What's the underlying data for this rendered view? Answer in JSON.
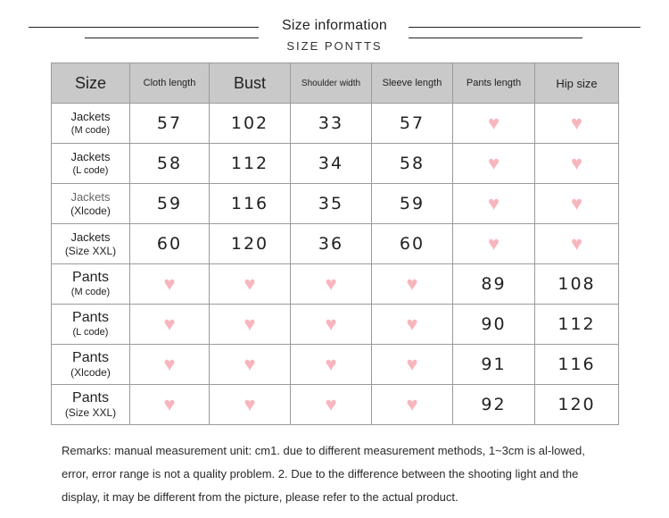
{
  "header": {
    "title": "Size information",
    "subtitle": "SIZE PONTTS"
  },
  "table": {
    "headers": [
      "Size",
      "Cloth length",
      "Bust",
      "Shoulder width",
      "Sleeve length",
      "Pants length",
      "Hip size"
    ],
    "rows": [
      {
        "type": "Jackets",
        "code": "(M code)",
        "values": [
          "57",
          "102",
          "33",
          "57",
          "♥",
          "♥"
        ]
      },
      {
        "type": "Jackets",
        "code": "(L code)",
        "values": [
          "58",
          "112",
          "34",
          "58",
          "♥",
          "♥"
        ]
      },
      {
        "type": "Jackets",
        "code": "(Xlcode)",
        "values": [
          "59",
          "116",
          "35",
          "59",
          "♥",
          "♥"
        ]
      },
      {
        "type": "Jackets",
        "code": "(Size XXL)",
        "values": [
          "60",
          "120",
          "36",
          "60",
          "♥",
          "♥"
        ]
      },
      {
        "type": "Pants",
        "code": "(M code)",
        "values": [
          "♥",
          "♥",
          "♥",
          "♥",
          "89",
          "108"
        ]
      },
      {
        "type": "Pants",
        "code": "(L code)",
        "values": [
          "♥",
          "♥",
          "♥",
          "♥",
          "90",
          "112"
        ]
      },
      {
        "type": "Pants",
        "code": "(Xlcode)",
        "values": [
          "♥",
          "♥",
          "♥",
          "♥",
          "91",
          "116"
        ]
      },
      {
        "type": "Pants",
        "code": "(Size XXL)",
        "values": [
          "♥",
          "♥",
          "♥",
          "♥",
          "92",
          "120"
        ]
      }
    ]
  },
  "remarks": "Remarks: manual measurement unit: cm1. due to different measurement methods, 1~3cm is al-lowed, error, error range is not a quality problem. 2. Due to the difference between the shooting light and the display, it may be different from the picture, please refer to the actual product.",
  "colors": {
    "header_bg": "#c9c9c9",
    "heart": "#f7b6bd",
    "border": "#9a9a9a"
  }
}
